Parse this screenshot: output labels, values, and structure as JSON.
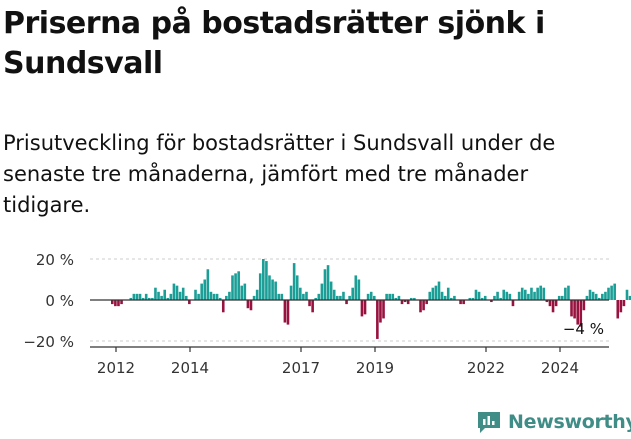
{
  "header": {
    "title": "Priserna på bostadsrätter sjönk i Sundsvall",
    "subtitle": "Prisutveckling för bostadsrätter i Sundsvall under de senaste tre månaderna, jämfört med tre månader tidigare."
  },
  "brand": {
    "name": "Newsworthy",
    "color": "#3f8d86"
  },
  "colors": {
    "positive": "#1a9e96",
    "negative": "#98123f",
    "axis": "#333333",
    "grid": "#cccccc"
  },
  "chart_data": {
    "type": "bar",
    "title": "",
    "xlabel": "",
    "ylabel": "",
    "ylim": [
      -20,
      20
    ],
    "grid": true,
    "legend": "none",
    "ytick_labels": [
      "20 %",
      "0 %",
      "−20 %"
    ],
    "ytick_values": [
      20,
      0,
      -20
    ],
    "xtick_labels": [
      "2012",
      "2014",
      "2017",
      "2019",
      "2022",
      "2024"
    ],
    "xtick_values": [
      2012,
      2014,
      2017,
      2019,
      2022,
      2024
    ],
    "last_value_label": "−4 %",
    "x_start": 2011.9,
    "x_step": 0.0833,
    "values": [
      -2,
      -3,
      -3,
      -2,
      0,
      0,
      1,
      3,
      3,
      3,
      1,
      3,
      1,
      1,
      6,
      4,
      2,
      5,
      1,
      3,
      8,
      7,
      4,
      6,
      2,
      -2,
      0,
      5,
      3,
      8,
      10,
      15,
      4,
      3,
      3,
      1,
      -6,
      2,
      4,
      12,
      13,
      14,
      7,
      8,
      -4,
      -5,
      2,
      5,
      13,
      20,
      19,
      12,
      10,
      9,
      3,
      3,
      -11,
      -12,
      7,
      18,
      12,
      6,
      3,
      4,
      -3,
      -6,
      1,
      3,
      8,
      15,
      17,
      9,
      5,
      2,
      2,
      4,
      -2,
      2,
      6,
      12,
      10,
      -8,
      -7,
      3,
      4,
      2,
      -19,
      -11,
      -9,
      3,
      3,
      3,
      1,
      2,
      -2,
      -1,
      -2,
      1,
      1,
      0,
      -6,
      -5,
      -2,
      4,
      6,
      7,
      9,
      4,
      2,
      6,
      1,
      2,
      0,
      -2,
      -2,
      0,
      1,
      1,
      5,
      4,
      1,
      2,
      0,
      -1,
      2,
      4,
      1,
      5,
      4,
      3,
      -3,
      0,
      4,
      6,
      5,
      3,
      6,
      4,
      6,
      7,
      6,
      -1,
      -3,
      -6,
      -3,
      2,
      2,
      6,
      7,
      -8,
      -9,
      -12,
      -13,
      -5,
      2,
      5,
      4,
      3,
      1,
      3,
      4,
      6,
      7,
      8,
      -9,
      -6,
      -3,
      5,
      2,
      3,
      4,
      9,
      6,
      6,
      -6,
      -4
    ]
  }
}
